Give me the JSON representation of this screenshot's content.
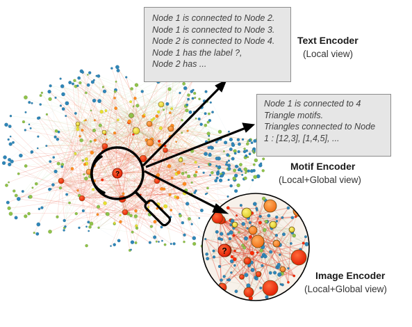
{
  "text_box": {
    "lines": [
      "Node 1 is connected to Node 2.",
      "Node 1 is connected to Node 3.",
      "Node 2 is connected to Node 4.",
      "Node 1 has the label ?,",
      "Node 2 has ..."
    ]
  },
  "motif_box": {
    "lines": [
      "Node 1 is connected to 4",
      "Triangle motifs.",
      "Triangles connected to Node",
      "1 : [12,3], [1,4,5], ..."
    ]
  },
  "encoders": {
    "text": {
      "title": "Text Encoder",
      "view": "(Local view)"
    },
    "motif": {
      "title": "Motif Encoder",
      "view": "(Local+Global view)"
    },
    "image": {
      "title": "Image Encoder",
      "view": "(Local+Global view)"
    }
  },
  "query_node_symbol": "?",
  "colors": {
    "arrow": "#000000",
    "node_red": "#ff2a00",
    "node_orange": "#ff8a1f",
    "node_yellow": "#e8e030",
    "node_green": "#8fc24a",
    "node_blue": "#2f86b8",
    "box_fill": "#e6e6e6"
  }
}
